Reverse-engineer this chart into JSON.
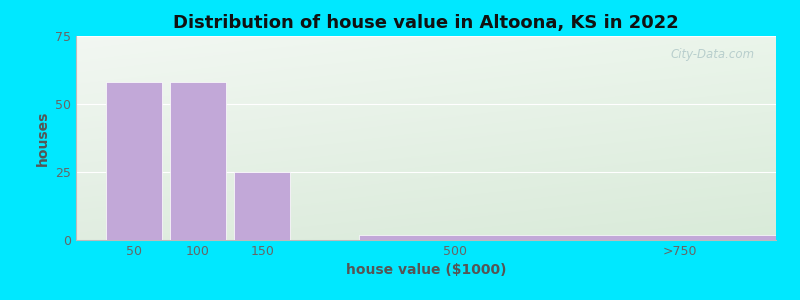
{
  "title": "Distribution of house value in Altoona, KS in 2022",
  "xlabel": "house value ($1000)",
  "ylabel": "houses",
  "bar_color": "#c2a8d8",
  "bar_edgecolor": "#ffffff",
  "background_outer": "#00e8ff",
  "yticks": [
    0,
    25,
    50,
    75
  ],
  "ylim": [
    0,
    75
  ],
  "categories": [
    "50",
    "100",
    "150",
    "500",
    ">750"
  ],
  "x_positions": [
    1,
    2,
    3,
    6,
    9
  ],
  "bar_widths": [
    0.9,
    0.9,
    0.9,
    0.9,
    3.5
  ],
  "values": [
    58,
    58,
    25,
    0,
    2
  ],
  "watermark": "City-Data.com",
  "title_fontsize": 13,
  "axis_label_fontsize": 10,
  "tick_label_color": "#666666",
  "axis_label_color": "#555555",
  "title_color": "#111111",
  "grid_color": "#ffffff",
  "bg_colors": [
    "#dff0d8",
    "#f0f8e8",
    "#eaf5f0",
    "#f5fff8"
  ]
}
